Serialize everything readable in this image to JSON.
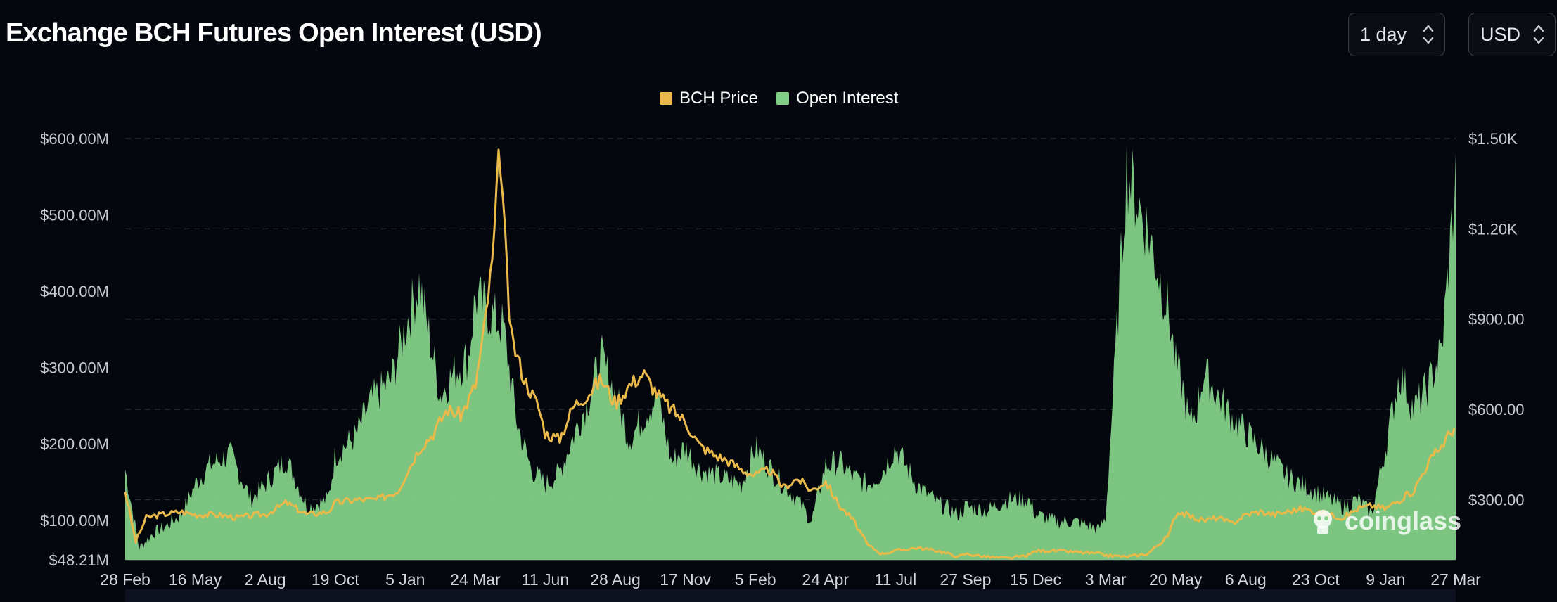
{
  "title": "Exchange BCH Futures Open Interest (USD)",
  "controls": {
    "range_select": "1 day",
    "currency_select": "USD"
  },
  "legend": [
    {
      "label": "BCH Price",
      "color": "#e9b949"
    },
    {
      "label": "Open Interest",
      "color": "#82d087"
    }
  ],
  "watermark": "coinglass",
  "chart_data": {
    "type": "area",
    "x_ticks": [
      "28 Feb",
      "16 May",
      "2 Aug",
      "19 Oct",
      "5 Jan",
      "24 Mar",
      "11 Jun",
      "28 Aug",
      "17 Nov",
      "5 Feb",
      "24 Apr",
      "11 Jul",
      "27 Sep",
      "15 Dec",
      "3 Mar",
      "20 May",
      "6 Aug",
      "23 Oct",
      "9 Jan",
      "27 Mar"
    ],
    "y_left": {
      "ticks": [
        "$600.00M",
        "$500.00M",
        "$400.00M",
        "$300.00M",
        "$200.00M",
        "$100.00M",
        "$48.21M"
      ],
      "min": 48.21,
      "max": 600,
      "unit": "M USD"
    },
    "y_right": {
      "ticks": [
        "$1.50K",
        "$1.20K",
        "$900.00",
        "$600.00",
        "$300.00"
      ],
      "min": 100,
      "max": 1500,
      "unit": "USD"
    },
    "grid": "horizontal dashed",
    "legend_position": "top-center",
    "series": [
      {
        "name": "Open Interest",
        "axis": "left",
        "type": "area",
        "color": "#82d087",
        "x": [
          0,
          0.2,
          0.4,
          0.6,
          0.8,
          1,
          1.2,
          1.5,
          1.8,
          2,
          2.3,
          2.6,
          2.9,
          3,
          3.3,
          3.5,
          3.8,
          4,
          4.2,
          4.5,
          4.7,
          4.9,
          5,
          5.2,
          5.4,
          5.6,
          5.8,
          6,
          6.2,
          6.4,
          6.6,
          6.8,
          7,
          7.2,
          7.4,
          7.6,
          7.8,
          8,
          8.2,
          8.5,
          8.8,
          9,
          9.3,
          9.6,
          9.8,
          10,
          10.2,
          10.4,
          10.6,
          10.8,
          11,
          11.3,
          11.6,
          11.9,
          12,
          12.3,
          12.6,
          12.9,
          13,
          13.3,
          13.6,
          13.9,
          14,
          14.3,
          14.6,
          14.9,
          15,
          15.1,
          15.2,
          15.3,
          15.4,
          15.6,
          15.8,
          16,
          16.2,
          16.4,
          16.6,
          16.8,
          17,
          17.2,
          17.4,
          17.6,
          17.8,
          18,
          18.2,
          18.4,
          18.6,
          18.8,
          19
        ],
        "values": [
          170,
          65,
          85,
          95,
          110,
          150,
          175,
          190,
          130,
          150,
          185,
          120,
          130,
          190,
          215,
          260,
          290,
          360,
          420,
          270,
          300,
          320,
          400,
          380,
          360,
          230,
          170,
          150,
          165,
          215,
          260,
          320,
          270,
          210,
          240,
          270,
          180,
          200,
          170,
          160,
          150,
          200,
          160,
          130,
          100,
          175,
          180,
          160,
          150,
          165,
          200,
          150,
          125,
          110,
          120,
          115,
          130,
          130,
          110,
          100,
          100,
          90,
          105,
          570,
          490,
          380,
          310,
          280,
          230,
          250,
          300,
          270,
          240,
          220,
          200,
          180,
          160,
          150,
          140,
          130,
          120,
          130,
          110,
          200,
          300,
          250,
          280,
          330,
          560
        ]
      },
      {
        "name": "BCH Price",
        "axis": "right",
        "type": "line",
        "color": "#e9b949",
        "x": [
          0,
          0.15,
          0.3,
          0.5,
          0.8,
          1,
          1.3,
          1.6,
          1.9,
          2,
          2.3,
          2.6,
          2.9,
          3,
          3.3,
          3.6,
          3.9,
          4,
          4.2,
          4.4,
          4.6,
          4.8,
          5,
          5.1,
          5.25,
          5.35,
          5.5,
          5.7,
          5.9,
          6,
          6.2,
          6.4,
          6.6,
          6.8,
          7,
          7.2,
          7.4,
          7.6,
          7.8,
          8,
          8.2,
          8.4,
          8.6,
          8.8,
          9,
          9.2,
          9.4,
          9.6,
          9.8,
          10,
          10.2,
          10.4,
          10.6,
          10.8,
          11,
          11.3,
          11.6,
          11.9,
          12,
          12.3,
          12.6,
          12.9,
          13,
          13.3,
          13.6,
          13.9,
          14,
          14.3,
          14.6,
          14.9,
          15,
          15.05,
          15.2,
          15.4,
          15.6,
          15.8,
          16,
          16.2,
          16.4,
          16.6,
          16.8,
          17,
          17.2,
          17.4,
          17.6,
          17.8,
          18,
          18.2,
          18.4,
          18.6,
          18.8,
          19
        ],
        "values": [
          330,
          160,
          240,
          250,
          260,
          250,
          250,
          240,
          250,
          250,
          290,
          250,
          260,
          290,
          300,
          300,
          330,
          380,
          470,
          520,
          600,
          580,
          680,
          820,
          1100,
          1480,
          850,
          700,
          610,
          520,
          500,
          610,
          650,
          700,
          620,
          680,
          720,
          650,
          600,
          560,
          480,
          450,
          430,
          400,
          380,
          400,
          340,
          370,
          330,
          360,
          280,
          230,
          150,
          120,
          130,
          140,
          130,
          110,
          120,
          110,
          105,
          115,
          130,
          130,
          125,
          120,
          115,
          110,
          120,
          180,
          250,
          260,
          245,
          230,
          240,
          220,
          250,
          260,
          250,
          260,
          270,
          260,
          250,
          240,
          270,
          280,
          270,
          300,
          330,
          420,
          480,
          550
        ]
      }
    ]
  }
}
